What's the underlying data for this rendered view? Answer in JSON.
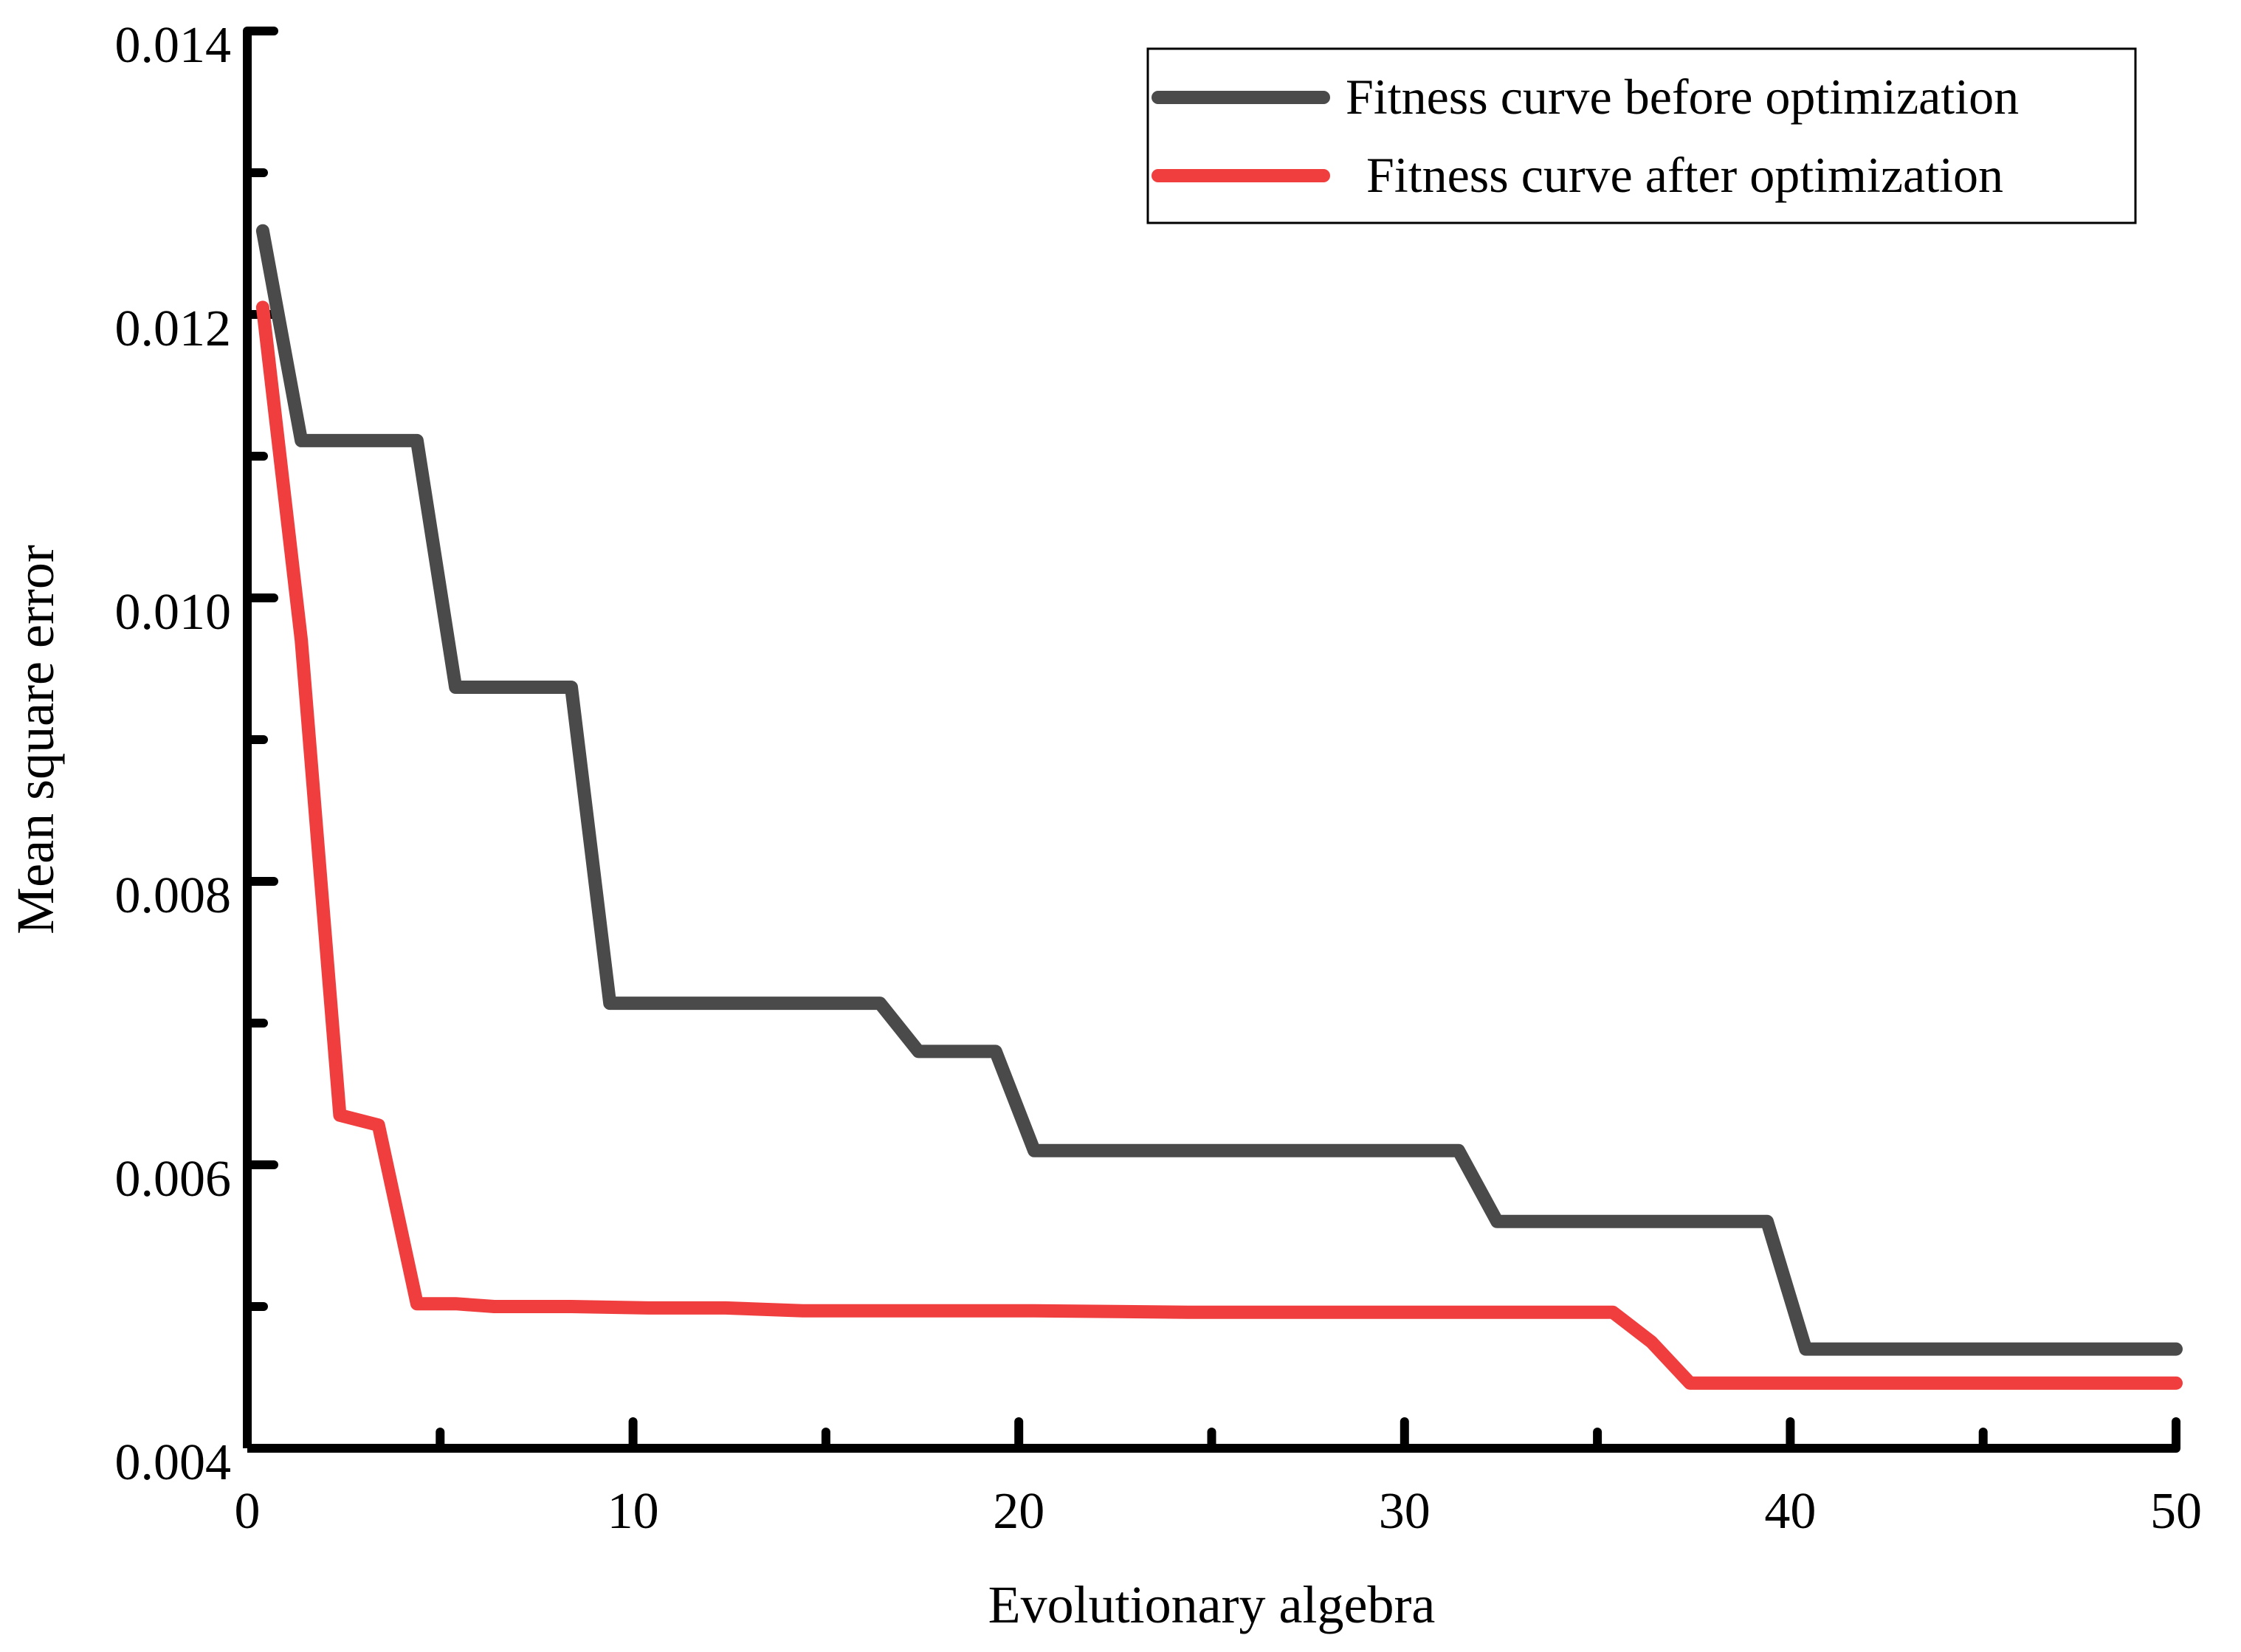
{
  "chart_data": {
    "type": "line",
    "title": "",
    "xlabel": "Evolutionary algebra",
    "ylabel": "Mean square error",
    "xlim": [
      0,
      50
    ],
    "ylim": [
      0.004,
      0.014
    ],
    "x_ticks": [
      0,
      10,
      20,
      30,
      40,
      50
    ],
    "x_tick_labels": [
      "0",
      "10",
      "20",
      "30",
      "40",
      "50"
    ],
    "y_ticks": [
      0.004,
      0.006,
      0.008,
      0.01,
      0.012,
      0.014
    ],
    "y_tick_labels": [
      "0.004",
      "0.006",
      "0.008",
      "0.010",
      "0.012",
      "0.014"
    ],
    "grid": false,
    "legend_position": "top-right",
    "series": [
      {
        "name": "Fitness curve before optimization",
        "color": "#4a4a4a",
        "x": [
          0.4,
          1.4,
          4.4,
          5.4,
          8.4,
          9.4,
          16.4,
          17.4,
          19.4,
          20.4,
          31.4,
          32.4,
          39.4,
          40.4,
          50
        ],
        "y": [
          0.01259,
          0.01111,
          0.01111,
          0.00937,
          0.00937,
          0.00714,
          0.00714,
          0.0068,
          0.0068,
          0.0061,
          0.0061,
          0.0056,
          0.0056,
          0.0047,
          0.0047
        ]
      },
      {
        "name": "Fitness curve after optimization",
        "color": "#f03e3e",
        "x": [
          0.4,
          1.4,
          2.4,
          3.4,
          4.4,
          5.4,
          6.4,
          8.4,
          10.4,
          12.4,
          14.4,
          16.4,
          20.4,
          24.4,
          28.4,
          32.4,
          35.4,
          36.4,
          37.4,
          50
        ],
        "y": [
          0.01205,
          0.0097,
          0.00635,
          0.00628,
          0.00502,
          0.00502,
          0.005,
          0.005,
          0.00499,
          0.00499,
          0.00497,
          0.00497,
          0.00497,
          0.00496,
          0.00496,
          0.00496,
          0.00496,
          0.00475,
          0.00446,
          0.00446
        ]
      }
    ]
  }
}
